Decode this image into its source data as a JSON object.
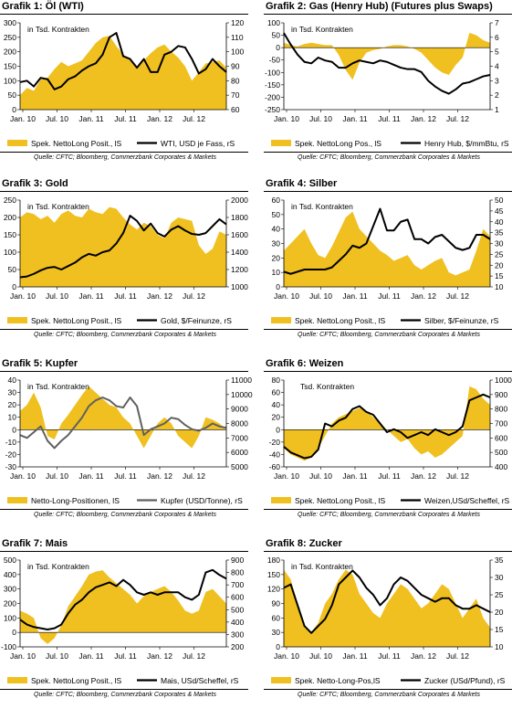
{
  "source": "Quelle: CFTC; Bloomberg, Commerzbank Corporates & Markets",
  "colors": {
    "area": "#f0c020",
    "line": "#000000",
    "line_copper": "#606060",
    "grid": "#000000"
  },
  "chart_data": [
    {
      "type": "area",
      "title_prefix": "Grafik 1:",
      "title_name": "Öl (WTI)",
      "annotation": "in Tsd. Kontrakten",
      "x_labels": [
        "Jan. 10",
        "Jul. 10",
        "Jan. 11",
        "Jul. 11",
        "Jan. 12",
        "Jul. 12"
      ],
      "left_axis": {
        "min": 0,
        "max": 300,
        "ticks": [
          0,
          50,
          100,
          150,
          200,
          250,
          300
        ]
      },
      "right_axis": {
        "min": 60,
        "max": 120,
        "ticks": [
          60,
          70,
          80,
          90,
          100,
          110,
          120
        ]
      },
      "zero_line": false,
      "series": [
        {
          "name": "Spek. NettoLong Posit., lS",
          "kind": "area",
          "axis": "left",
          "values": [
            50,
            75,
            65,
            105,
            110,
            140,
            165,
            150,
            160,
            170,
            200,
            230,
            250,
            255,
            220,
            190,
            170,
            150,
            170,
            195,
            215,
            225,
            200,
            180,
            150,
            100,
            130,
            160,
            165,
            170,
            145
          ]
        },
        {
          "name": "WTI, USD je Fass, rS",
          "kind": "line",
          "axis": "right",
          "values": [
            79,
            80,
            76,
            82,
            81,
            74,
            76,
            81,
            83,
            87,
            90,
            92,
            98,
            110,
            113,
            97,
            95,
            89,
            95,
            86,
            86,
            98,
            100,
            104,
            103,
            95,
            85,
            88,
            95,
            90,
            86
          ]
        }
      ]
    },
    {
      "type": "area",
      "title_prefix": "Grafik 2:",
      "title_name": "Gas (Henry Hub) (Futures plus Swaps)",
      "annotation": "in Tsd. Kontrakten",
      "x_labels": [
        "Jan. 10",
        "Jul. 10",
        "Jan. 11",
        "Jul. 11",
        "Jan. 12",
        "Jul. 12"
      ],
      "left_axis": {
        "min": -250,
        "max": 100,
        "ticks": [
          -250,
          -200,
          -150,
          -100,
          -50,
          0,
          50,
          100
        ]
      },
      "right_axis": {
        "min": 1,
        "max": 7,
        "ticks": [
          1,
          2,
          3,
          4,
          5,
          6,
          7
        ]
      },
      "zero_line": true,
      "series": [
        {
          "name": "Spek. NettoLong Pos., lS",
          "kind": "area",
          "axis": "left",
          "values": [
            20,
            10,
            5,
            15,
            20,
            15,
            10,
            10,
            -30,
            -90,
            -130,
            -60,
            -20,
            -10,
            -5,
            5,
            10,
            10,
            5,
            -5,
            -20,
            -50,
            -80,
            -100,
            -110,
            -70,
            -40,
            60,
            50,
            30,
            20
          ]
        },
        {
          "name": "Henry Hub, $/mmBtu, rS",
          "kind": "line",
          "axis": "right",
          "values": [
            6.3,
            5.5,
            4.8,
            4.3,
            4.2,
            4.6,
            4.4,
            4.3,
            3.9,
            3.9,
            4.2,
            4.4,
            4.3,
            4.2,
            4.4,
            4.3,
            4.1,
            3.9,
            3.8,
            3.8,
            3.6,
            3.0,
            2.6,
            2.3,
            2.1,
            2.4,
            2.8,
            2.9,
            3.1,
            3.3,
            3.4
          ]
        }
      ]
    },
    {
      "type": "area",
      "title_prefix": "Grafik 3:",
      "title_name": "Gold",
      "annotation": "in Tsd. Kontrakten",
      "x_labels": [
        "Jan. 10",
        "Jul. 10",
        "Jan. 11",
        "Jul. 11",
        "Jan. 12",
        "Jul. 12"
      ],
      "left_axis": {
        "min": 0,
        "max": 250,
        "ticks": [
          0,
          50,
          100,
          150,
          200,
          250
        ]
      },
      "right_axis": {
        "min": 1000,
        "max": 2000,
        "ticks": [
          1000,
          1200,
          1400,
          1600,
          1800,
          2000
        ]
      },
      "zero_line": false,
      "series": [
        {
          "name": "Spek. NettoLong Posit., lS",
          "kind": "area",
          "axis": "left",
          "values": [
            200,
            215,
            210,
            195,
            205,
            185,
            210,
            220,
            205,
            200,
            225,
            215,
            210,
            230,
            225,
            200,
            180,
            165,
            185,
            175,
            150,
            140,
            185,
            200,
            195,
            190,
            120,
            95,
            110,
            160,
            150
          ]
        },
        {
          "name": "Gold, $/Feinunze, rS",
          "kind": "line",
          "axis": "right",
          "values": [
            1110,
            1120,
            1150,
            1190,
            1220,
            1230,
            1200,
            1240,
            1280,
            1340,
            1380,
            1360,
            1400,
            1420,
            1500,
            1620,
            1820,
            1760,
            1650,
            1730,
            1620,
            1580,
            1660,
            1700,
            1650,
            1610,
            1600,
            1620,
            1700,
            1780,
            1720
          ]
        }
      ]
    },
    {
      "type": "area",
      "title_prefix": "Grafik 4:",
      "title_name": "Silber",
      "annotation": "in Tsd. Kontrakten",
      "x_labels": [
        "Jan. 10",
        "Jul. 10",
        "Jan. 11",
        "Jul. 11",
        "Jan. 12",
        "Jul. 12"
      ],
      "left_axis": {
        "min": 0,
        "max": 60,
        "ticks": [
          0,
          10,
          20,
          30,
          40,
          50,
          60
        ]
      },
      "right_axis": {
        "min": 10,
        "max": 50,
        "ticks": [
          10,
          15,
          20,
          25,
          30,
          35,
          40,
          45,
          50
        ]
      },
      "zero_line": false,
      "series": [
        {
          "name": "Spek. NettoLong Posit., lS",
          "kind": "area",
          "axis": "left",
          "values": [
            25,
            30,
            35,
            40,
            30,
            22,
            20,
            28,
            38,
            48,
            52,
            40,
            35,
            30,
            25,
            22,
            18,
            20,
            22,
            15,
            12,
            15,
            18,
            20,
            10,
            8,
            10,
            12,
            25,
            40,
            35
          ]
        },
        {
          "name": "Silber, $/Feinunze, rS",
          "kind": "line",
          "axis": "right",
          "values": [
            17,
            16,
            17,
            18,
            18,
            18,
            18,
            19,
            22,
            25,
            29,
            28,
            30,
            38,
            46,
            36,
            36,
            40,
            41,
            32,
            32,
            30,
            33,
            34,
            31,
            28,
            27,
            28,
            34,
            34,
            32
          ]
        }
      ]
    },
    {
      "type": "area",
      "title_prefix": "Grafik 5:",
      "title_name": "Kupfer",
      "annotation": "in Tsd. Kontrakten",
      "x_labels": [
        "Jan. 10",
        "Jul. 10",
        "Jan. 11",
        "Jul. 11",
        "Jan. 12",
        "Jul. 12"
      ],
      "left_axis": {
        "min": -30,
        "max": 40,
        "ticks": [
          -30,
          -20,
          -10,
          0,
          10,
          20,
          30,
          40
        ]
      },
      "right_axis": {
        "min": 5000,
        "max": 11000,
        "ticks": [
          5000,
          6000,
          7000,
          8000,
          9000,
          10000,
          11000
        ]
      },
      "zero_line": true,
      "series": [
        {
          "name": "Netto-Long-Positionen, lS",
          "kind": "area",
          "axis": "left",
          "values": [
            15,
            20,
            30,
            18,
            -5,
            -8,
            5,
            12,
            20,
            28,
            35,
            30,
            25,
            20,
            18,
            10,
            5,
            -5,
            -15,
            -5,
            5,
            10,
            5,
            -5,
            -10,
            -15,
            -5,
            10,
            8,
            5,
            0
          ]
        },
        {
          "name": "Kupfer (USD/Tonne), rS",
          "kind": "line",
          "axis": "right",
          "values": [
            7200,
            7000,
            7400,
            7800,
            6800,
            6300,
            6800,
            7200,
            7800,
            8400,
            9200,
            9600,
            9800,
            9600,
            9200,
            9100,
            9800,
            9200,
            7200,
            7600,
            7800,
            8000,
            8400,
            8300,
            7900,
            7600,
            7500,
            7700,
            8000,
            7800,
            7700
          ]
        }
      ]
    },
    {
      "type": "area",
      "title_prefix": "Grafik 6:",
      "title_name": "Weizen",
      "annotation": "Tsd. Kontrakten",
      "x_labels": [
        "Jan. 10",
        "Jul. 10",
        "Jan. 11",
        "Jul. 11",
        "Jan. 12",
        "Jul. 12"
      ],
      "left_axis": {
        "min": -60,
        "max": 80,
        "ticks": [
          -60,
          -40,
          -20,
          0,
          20,
          40,
          60,
          80
        ]
      },
      "right_axis": {
        "min": 400,
        "max": 1000,
        "ticks": [
          400,
          500,
          600,
          700,
          800,
          900,
          1000
        ]
      },
      "zero_line": true,
      "series": [
        {
          "name": "Spek. NettoLong Posit., lS",
          "kind": "area",
          "axis": "left",
          "values": [
            -30,
            -40,
            -45,
            -50,
            -45,
            -30,
            -10,
            10,
            20,
            25,
            30,
            35,
            30,
            20,
            10,
            0,
            -10,
            -20,
            -15,
            -30,
            -40,
            -35,
            -45,
            -40,
            -30,
            -20,
            -10,
            70,
            65,
            50,
            40
          ]
        },
        {
          "name": "Weizen,USd/Scheffel, rS",
          "kind": "line",
          "axis": "right",
          "values": [
            540,
            500,
            480,
            460,
            470,
            520,
            700,
            680,
            720,
            740,
            800,
            820,
            780,
            760,
            700,
            640,
            660,
            640,
            600,
            620,
            640,
            620,
            660,
            640,
            620,
            640,
            680,
            860,
            880,
            900,
            880
          ]
        }
      ]
    },
    {
      "type": "area",
      "title_prefix": "Grafik 7:",
      "title_name": "Mais",
      "annotation": "in Tsd. Kontrakten",
      "x_labels": [
        "Jan. 10",
        "Jul. 10",
        "Jan. 11",
        "Jul. 11",
        "Jan. 12",
        "Jul. 12"
      ],
      "left_axis": {
        "min": -100,
        "max": 500,
        "ticks": [
          -100,
          0,
          100,
          200,
          300,
          400,
          500
        ]
      },
      "right_axis": {
        "min": 200,
        "max": 900,
        "ticks": [
          200,
          300,
          400,
          500,
          600,
          700,
          800,
          900
        ]
      },
      "zero_line": true,
      "series": [
        {
          "name": "Spek. NettoLong Posit., lS",
          "kind": "area",
          "axis": "left",
          "values": [
            150,
            130,
            100,
            -40,
            -80,
            -40,
            50,
            180,
            250,
            320,
            400,
            420,
            430,
            380,
            340,
            300,
            260,
            200,
            250,
            280,
            300,
            320,
            280,
            220,
            150,
            130,
            150,
            280,
            300,
            250,
            200
          ]
        },
        {
          "name": "Mais, USd/Scheffel, rS",
          "kind": "line",
          "axis": "right",
          "values": [
            420,
            380,
            360,
            350,
            340,
            350,
            380,
            470,
            540,
            580,
            640,
            680,
            700,
            720,
            690,
            740,
            700,
            640,
            620,
            640,
            620,
            640,
            640,
            640,
            600,
            580,
            620,
            800,
            820,
            780,
            750
          ]
        }
      ]
    },
    {
      "type": "area",
      "title_prefix": "Grafik 8:",
      "title_name": "Zucker",
      "annotation": "in Tsd. Kontrakten",
      "x_labels": [
        "Jan. 10",
        "Jul. 10",
        "Jan. 11",
        "Jul. 11",
        "Jan. 12",
        "Jul. 12"
      ],
      "left_axis": {
        "min": 0,
        "max": 180,
        "ticks": [
          0,
          30,
          60,
          90,
          120,
          150,
          180
        ]
      },
      "right_axis": {
        "min": 10,
        "max": 35,
        "ticks": [
          10,
          15,
          20,
          25,
          30,
          35
        ]
      },
      "zero_line": false,
      "series": [
        {
          "name": "Spek. Netto-Long-Pos,lS",
          "kind": "area",
          "axis": "left",
          "values": [
            160,
            140,
            90,
            40,
            30,
            50,
            90,
            110,
            140,
            160,
            150,
            110,
            90,
            70,
            60,
            90,
            110,
            130,
            120,
            100,
            80,
            90,
            110,
            130,
            120,
            90,
            60,
            80,
            100,
            60,
            40
          ]
        },
        {
          "name": "Zucker (USd/Pfund), rS",
          "kind": "line",
          "axis": "right",
          "values": [
            27,
            28,
            22,
            16,
            14,
            16,
            18,
            22,
            28,
            30,
            32,
            30,
            27,
            25,
            22,
            24,
            28,
            30,
            29,
            27,
            25,
            24,
            23,
            24,
            24,
            22,
            21,
            21,
            22,
            21,
            20
          ]
        }
      ]
    }
  ]
}
